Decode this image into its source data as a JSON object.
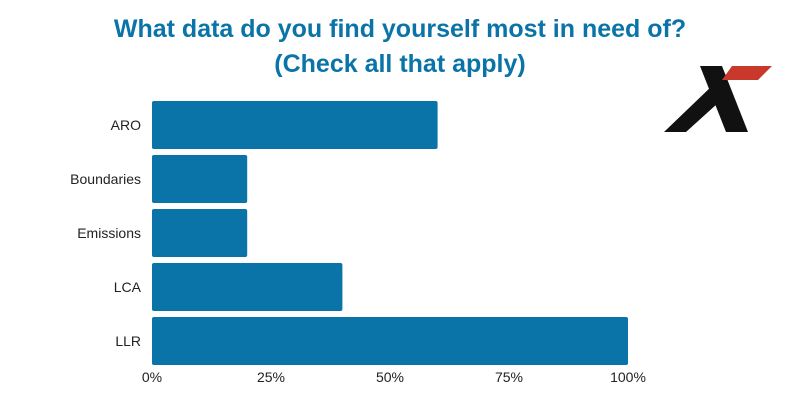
{
  "title": {
    "line1": "What data do you find yourself most in need of?",
    "line2": "(Check all that apply)"
  },
  "logo": {
    "icon": "x-logo-icon",
    "colors": [
      "#111111",
      "#c8382b"
    ]
  },
  "colors": {
    "bar": "#0a73a8",
    "title": "#0a73a8",
    "text": "#222222"
  },
  "chart_data": {
    "type": "bar",
    "orientation": "horizontal",
    "title": "What data do you find yourself most in need of? (Check all that apply)",
    "categories": [
      "ARO",
      "Boundaries",
      "Emissions",
      "LCA",
      "LLR"
    ],
    "values": [
      60,
      20,
      20,
      40,
      100
    ],
    "value_unit": "%",
    "xlim": [
      0,
      100
    ],
    "x_ticks": [
      "0%",
      "25%",
      "50%",
      "75%",
      "100%"
    ],
    "x_tick_values": [
      0,
      25,
      50,
      75,
      100
    ],
    "grid": false,
    "legend": "none"
  }
}
